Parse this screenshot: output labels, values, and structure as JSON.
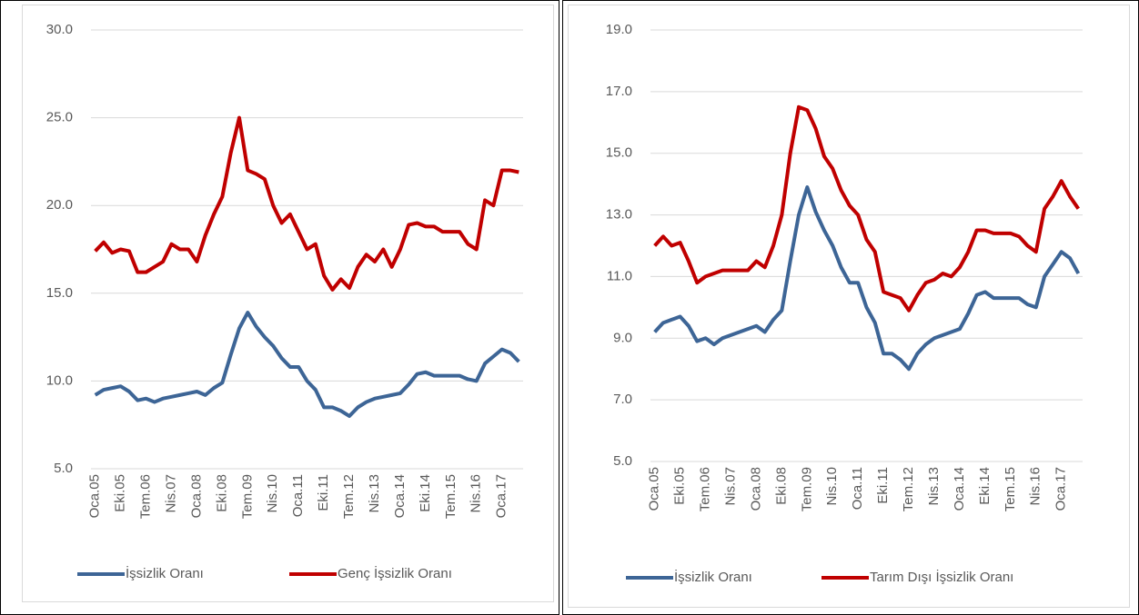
{
  "chart_data": [
    {
      "type": "line",
      "categories": [
        "Oca.05",
        null,
        null,
        "Eki.05",
        null,
        null,
        "Tem.06",
        null,
        null,
        "Nis.07",
        null,
        null,
        "Oca.08",
        null,
        null,
        "Eki.08",
        null,
        null,
        "Tem.09",
        null,
        null,
        "Nis.10",
        null,
        null,
        "Oca.11",
        null,
        null,
        "Eki.11",
        null,
        null,
        "Tem.12",
        null,
        null,
        "Nis.13",
        null,
        null,
        "Oca.14",
        null,
        null,
        "Eki.14",
        null,
        null,
        "Tem.15",
        null,
        null,
        "Nis.16",
        null,
        null,
        "Oca.17",
        null,
        null
      ],
      "ylim": [
        5,
        30
      ],
      "yticks": [
        {
          "value": 5,
          "label": "5.0"
        },
        {
          "value": 10,
          "label": "10.0"
        },
        {
          "value": 15,
          "label": "15.0"
        },
        {
          "value": 20,
          "label": "20.0"
        },
        {
          "value": 25,
          "label": "25.0"
        },
        {
          "value": 30,
          "label": "30.0"
        }
      ],
      "grid": true,
      "legend": "bottom",
      "series": [
        {
          "name": "İşsizlik Oranı",
          "color": "#3d6596",
          "values": [
            9.2,
            9.5,
            9.6,
            9.7,
            9.4,
            8.9,
            9.0,
            8.8,
            9.0,
            9.1,
            9.2,
            9.3,
            9.4,
            9.2,
            9.6,
            9.9,
            11.5,
            13.0,
            13.9,
            13.1,
            12.5,
            12.0,
            11.3,
            10.8,
            10.8,
            10.0,
            9.5,
            8.5,
            8.5,
            8.3,
            8.0,
            8.5,
            8.8,
            9.0,
            9.1,
            9.2,
            9.3,
            9.8,
            10.4,
            10.5,
            10.3,
            10.3,
            10.3,
            10.3,
            10.1,
            10.0,
            11.0,
            11.4,
            11.8,
            11.6,
            11.1
          ]
        },
        {
          "name": "Genç İşsizlik Oranı",
          "color": "#c00000",
          "values": [
            17.4,
            17.9,
            17.3,
            17.5,
            17.4,
            16.2,
            16.2,
            16.5,
            16.8,
            17.8,
            17.5,
            17.5,
            16.8,
            18.3,
            19.5,
            20.5,
            23.0,
            25.0,
            22.0,
            21.8,
            21.5,
            20.0,
            19.0,
            19.5,
            18.5,
            17.5,
            17.8,
            16.0,
            15.2,
            15.8,
            15.3,
            16.5,
            17.2,
            16.8,
            17.5,
            16.5,
            17.5,
            18.9,
            19.0,
            18.8,
            18.8,
            18.5,
            18.5,
            18.5,
            17.8,
            17.5,
            20.3,
            20.0,
            22.0,
            22.0,
            21.9
          ]
        }
      ]
    },
    {
      "type": "line",
      "categories": [
        "Oca.05",
        null,
        null,
        "Eki.05",
        null,
        null,
        "Tem.06",
        null,
        null,
        "Nis.07",
        null,
        null,
        "Oca.08",
        null,
        null,
        "Eki.08",
        null,
        null,
        "Tem.09",
        null,
        null,
        "Nis.10",
        null,
        null,
        "Oca.11",
        null,
        null,
        "Eki.11",
        null,
        null,
        "Tem.12",
        null,
        null,
        "Nis.13",
        null,
        null,
        "Oca.14",
        null,
        null,
        "Eki.14",
        null,
        null,
        "Tem.15",
        null,
        null,
        "Nis.16",
        null,
        null,
        "Oca.17",
        null,
        null
      ],
      "ylim": [
        5,
        19
      ],
      "yticks": [
        {
          "value": 5,
          "label": "5.0"
        },
        {
          "value": 7,
          "label": "7.0"
        },
        {
          "value": 9,
          "label": "9.0"
        },
        {
          "value": 11,
          "label": "11.0"
        },
        {
          "value": 13,
          "label": "13.0"
        },
        {
          "value": 15,
          "label": "15.0"
        },
        {
          "value": 17,
          "label": "17.0"
        },
        {
          "value": 19,
          "label": "19.0"
        }
      ],
      "grid": true,
      "legend": "bottom",
      "series": [
        {
          "name": "İşsizlik Oranı",
          "color": "#3d6596",
          "values": [
            9.2,
            9.5,
            9.6,
            9.7,
            9.4,
            8.9,
            9.0,
            8.8,
            9.0,
            9.1,
            9.2,
            9.3,
            9.4,
            9.2,
            9.6,
            9.9,
            11.5,
            13.0,
            13.9,
            13.1,
            12.5,
            12.0,
            11.3,
            10.8,
            10.8,
            10.0,
            9.5,
            8.5,
            8.5,
            8.3,
            8.0,
            8.5,
            8.8,
            9.0,
            9.1,
            9.2,
            9.3,
            9.8,
            10.4,
            10.5,
            10.3,
            10.3,
            10.3,
            10.3,
            10.1,
            10.0,
            11.0,
            11.4,
            11.8,
            11.6,
            11.1
          ]
        },
        {
          "name": "Tarım Dışı İşsizlik Oranı",
          "color": "#c00000",
          "values": [
            12.0,
            12.3,
            12.0,
            12.1,
            11.5,
            10.8,
            11.0,
            11.1,
            11.2,
            11.2,
            11.2,
            11.2,
            11.5,
            11.3,
            12.0,
            13.0,
            15.0,
            16.5,
            16.4,
            15.8,
            14.9,
            14.5,
            13.8,
            13.3,
            13.0,
            12.2,
            11.8,
            10.5,
            10.4,
            10.3,
            9.9,
            10.4,
            10.8,
            10.9,
            11.1,
            11.0,
            11.3,
            11.8,
            12.5,
            12.5,
            12.4,
            12.4,
            12.4,
            12.3,
            12.0,
            11.8,
            13.2,
            13.6,
            14.1,
            13.6,
            13.2
          ]
        }
      ]
    }
  ]
}
